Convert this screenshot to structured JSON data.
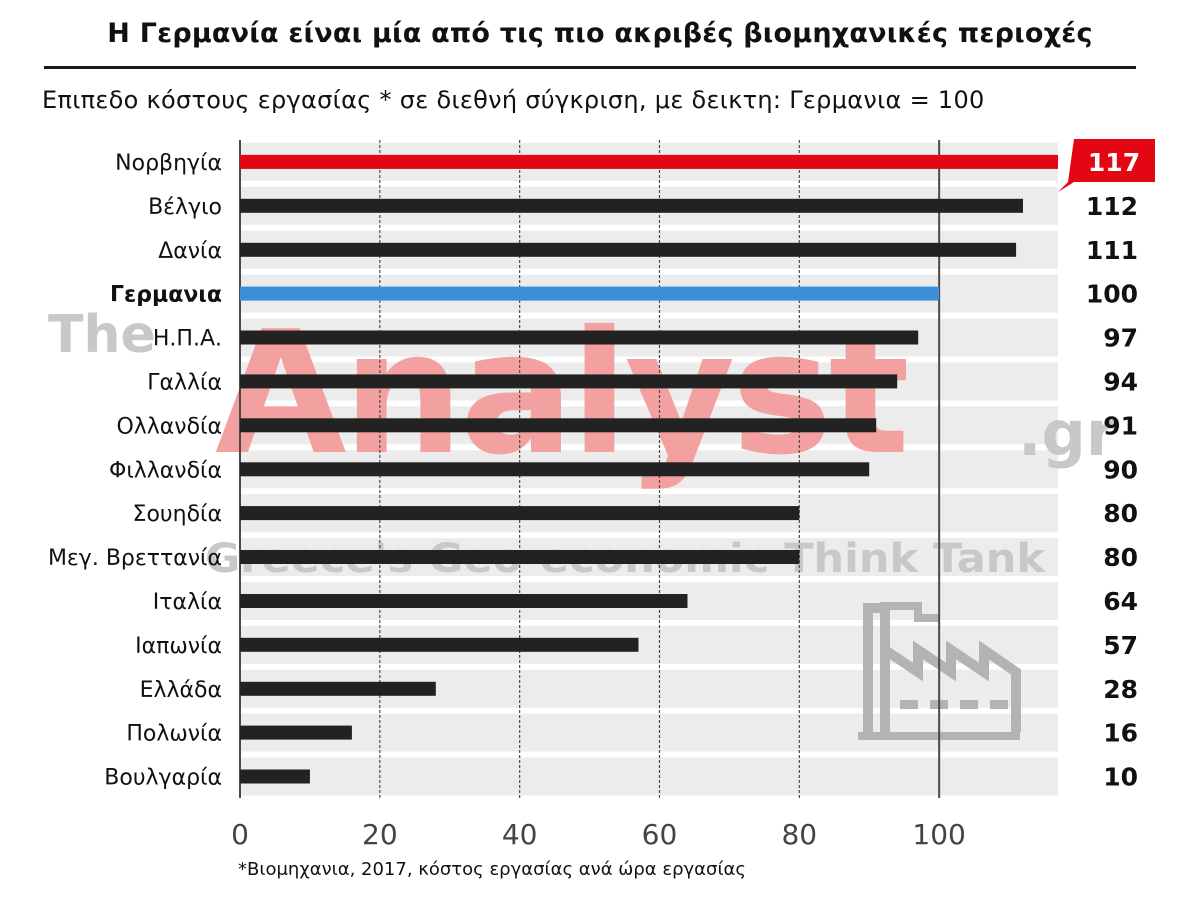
{
  "title": "Η Γερμανία είναι μία από τις πιο ακριβές βιομηχανικές περιοχές",
  "subtitle": "Επιπεδο κόστους εργασίας * σε διεθνή σύγκριση, με δεικτη: Γερμανια = 100",
  "footnote": "*Βιομηχανια, 2017, κόστος εργασίας ανά ώρα εργασίας",
  "watermark": {
    "brand_the": "The",
    "brand_main": "Analyst",
    "brand_suffix": ".gr",
    "tagline": "Greece's Geo-economic Think Tank"
  },
  "colors": {
    "bar_default": "#222222",
    "bar_highlight_top": "#e30613",
    "bar_reference": "#3a8fd6",
    "row_band": "#ececec",
    "gridline": "#4a4a4a",
    "axis_text": "#444444",
    "watermark_red": "#f3a0a0",
    "watermark_gray": "#c8c8c8",
    "factory_icon": "#b3b3b3"
  },
  "icons": [
    "factory-icon"
  ],
  "chart_data": {
    "type": "bar",
    "orientation": "horizontal",
    "categories": [
      "Νορβηγία",
      "Βέλγιο",
      "Δανία",
      "Γερμανια",
      "Η.Π.Α.",
      "Γαλλία",
      "Ολλανδία",
      "Φιλλανδία",
      "Σουηδία",
      "Μεγ. Βρεττανία",
      "Ιταλία",
      "Ιαπωνία",
      "Ελλάδα",
      "Πολωνία",
      "Βουλγαρία"
    ],
    "values": [
      117,
      112,
      111,
      100,
      97,
      94,
      91,
      90,
      80,
      80,
      64,
      57,
      28,
      16,
      10
    ],
    "highlight": {
      "Νορβηγία": "top",
      "Γερμανια": "reference"
    },
    "xlim": [
      0,
      117
    ],
    "xticks": [
      0,
      20,
      40,
      60,
      80,
      100
    ],
    "grid": true,
    "title": "Η Γερμανία είναι μία από τις πιο ακριβές βιομηχανικές περιοχές",
    "xlabel": "",
    "ylabel": ""
  }
}
